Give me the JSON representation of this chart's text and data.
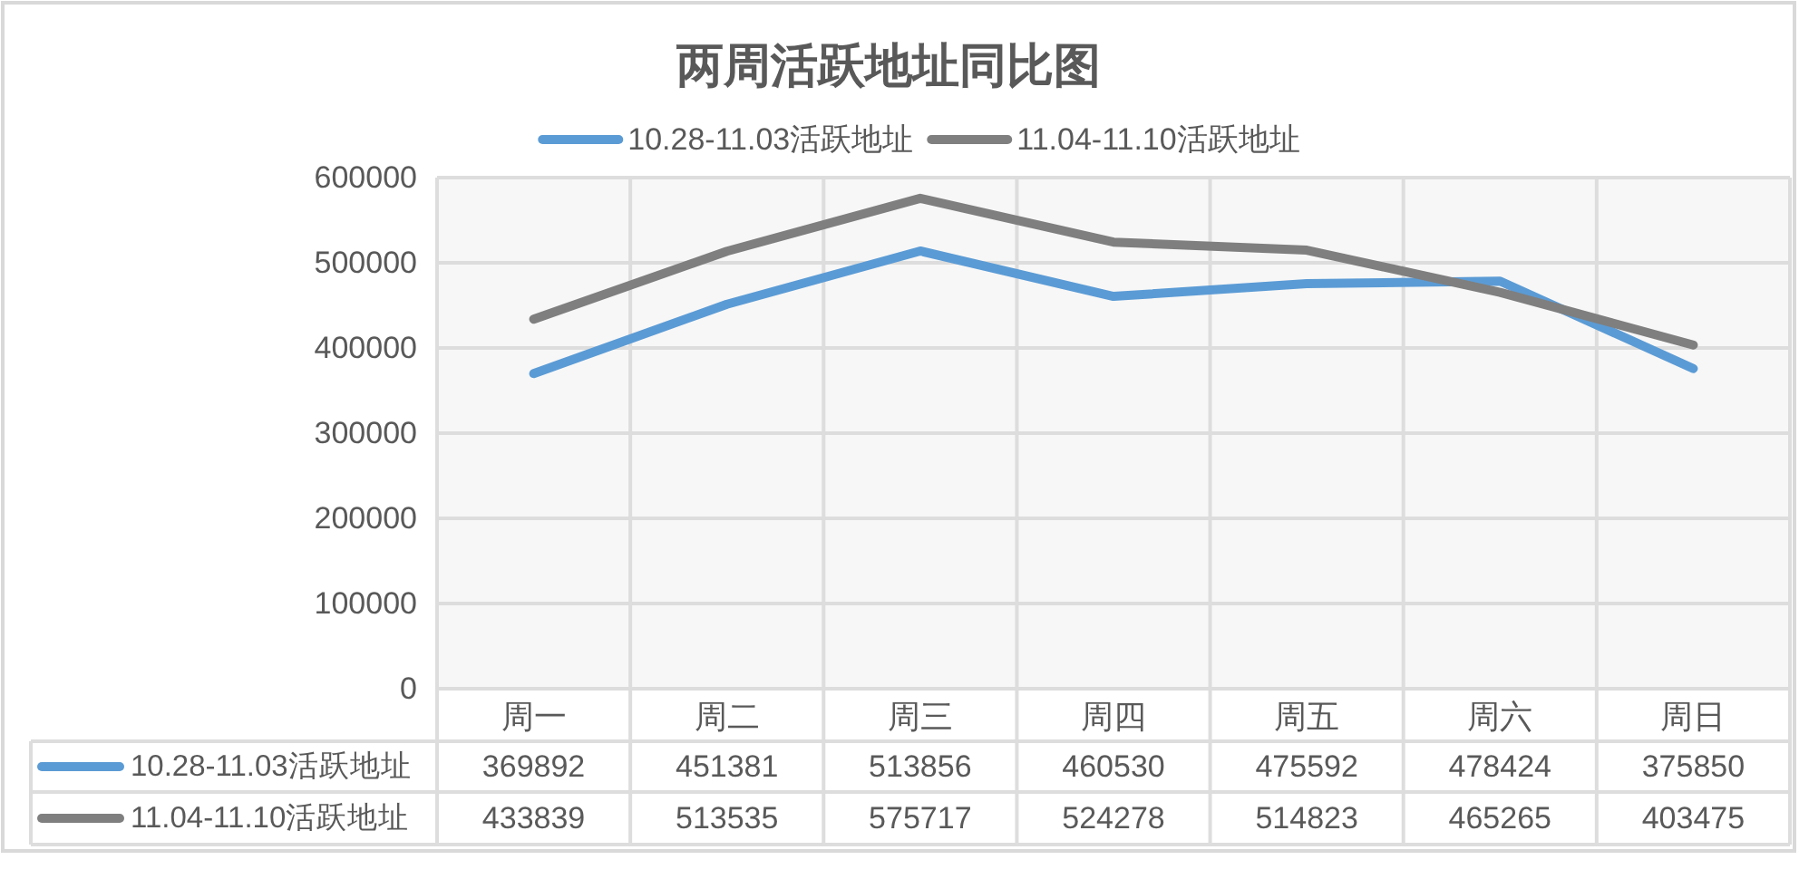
{
  "chart_data": {
    "type": "line",
    "title": "两周活跃地址同比图",
    "categories": [
      "周一",
      "周二",
      "周三",
      "周四",
      "周五",
      "周六",
      "周日"
    ],
    "series": [
      {
        "name": "10.28-11.03活跃地址",
        "color": "#5b9bd5",
        "values": [
          369892,
          451381,
          513856,
          460530,
          475592,
          478424,
          375850
        ]
      },
      {
        "name": "11.04-11.10活跃地址",
        "color": "#7f7f7f",
        "values": [
          433839,
          513535,
          575717,
          524278,
          514823,
          465265,
          403475
        ]
      }
    ],
    "ylim": [
      0,
      600000
    ],
    "yticks": [
      0,
      100000,
      200000,
      300000,
      400000,
      500000,
      600000
    ],
    "grid": true,
    "legend": "top",
    "data_labels": true
  }
}
